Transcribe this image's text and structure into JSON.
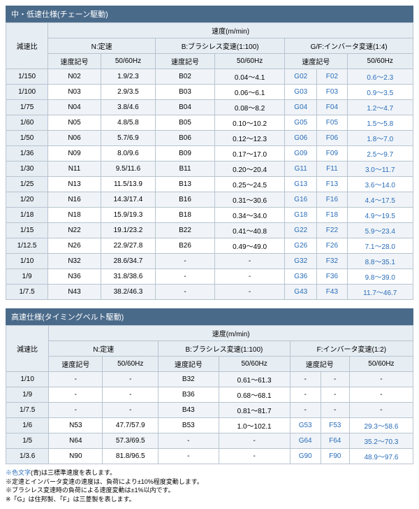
{
  "table1": {
    "title": "中・低速仕様(チェーン駆動)",
    "header_speed": "速度(m/min)",
    "header_ratio": "減速比",
    "header_n": "N:定速",
    "header_b": "B:ブラシレス変速(1:100)",
    "header_gf": "G/F:インバータ変速(1:4)",
    "header_code": "速度記号",
    "header_hz": "50/60Hz",
    "rows": [
      {
        "ratio": "1/150",
        "n_code": "N02",
        "n_hz": "1.9/2.3",
        "b_code": "B02",
        "b_hz": "0.04～4.1",
        "g": "G02",
        "f": "F02",
        "gf_hz": "0.6～2.3"
      },
      {
        "ratio": "1/100",
        "n_code": "N03",
        "n_hz": "2.9/3.5",
        "b_code": "B03",
        "b_hz": "0.06～6.1",
        "g": "G03",
        "f": "F03",
        "gf_hz": "0.9～3.5"
      },
      {
        "ratio": "1/75",
        "n_code": "N04",
        "n_hz": "3.8/4.6",
        "b_code": "B04",
        "b_hz": "0.08～8.2",
        "g": "G04",
        "f": "F04",
        "gf_hz": "1.2～4.7"
      },
      {
        "ratio": "1/60",
        "n_code": "N05",
        "n_hz": "4.8/5.8",
        "b_code": "B05",
        "b_hz": "0.10～10.2",
        "g": "G05",
        "f": "F05",
        "gf_hz": "1.5～5.8"
      },
      {
        "ratio": "1/50",
        "n_code": "N06",
        "n_hz": "5.7/6.9",
        "b_code": "B06",
        "b_hz": "0.12～12.3",
        "g": "G06",
        "f": "F06",
        "gf_hz": "1.8～7.0"
      },
      {
        "ratio": "1/36",
        "n_code": "N09",
        "n_hz": "8.0/9.6",
        "b_code": "B09",
        "b_hz": "0.17～17.0",
        "g": "G09",
        "f": "F09",
        "gf_hz": "2.5～9.7"
      },
      {
        "ratio": "1/30",
        "n_code": "N11",
        "n_hz": "9.5/11.6",
        "b_code": "B11",
        "b_hz": "0.20～20.4",
        "g": "G11",
        "f": "F11",
        "gf_hz": "3.0～11.7"
      },
      {
        "ratio": "1/25",
        "n_code": "N13",
        "n_hz": "11.5/13.9",
        "b_code": "B13",
        "b_hz": "0.25～24.5",
        "g": "G13",
        "f": "F13",
        "gf_hz": "3.6～14.0"
      },
      {
        "ratio": "1/20",
        "n_code": "N16",
        "n_hz": "14.3/17.4",
        "b_code": "B16",
        "b_hz": "0.31～30.6",
        "g": "G16",
        "f": "F16",
        "gf_hz": "4.4～17.5"
      },
      {
        "ratio": "1/18",
        "n_code": "N18",
        "n_hz": "15.9/19.3",
        "b_code": "B18",
        "b_hz": "0.34～34.0",
        "g": "G18",
        "f": "F18",
        "gf_hz": "4.9～19.5"
      },
      {
        "ratio": "1/15",
        "n_code": "N22",
        "n_hz": "19.1/23.2",
        "b_code": "B22",
        "b_hz": "0.41～40.8",
        "g": "G22",
        "f": "F22",
        "gf_hz": "5.9～23.4"
      },
      {
        "ratio": "1/12.5",
        "n_code": "N26",
        "n_hz": "22.9/27.8",
        "b_code": "B26",
        "b_hz": "0.49～49.0",
        "g": "G26",
        "f": "F26",
        "gf_hz": "7.1～28.0"
      },
      {
        "ratio": "1/10",
        "n_code": "N32",
        "n_hz": "28.6/34.7",
        "b_code": "-",
        "b_hz": "-",
        "g": "G32",
        "f": "F32",
        "gf_hz": "8.8～35.1"
      },
      {
        "ratio": "1/9",
        "n_code": "N36",
        "n_hz": "31.8/38.6",
        "b_code": "-",
        "b_hz": "-",
        "g": "G36",
        "f": "F36",
        "gf_hz": "9.8～39.0"
      },
      {
        "ratio": "1/7.5",
        "n_code": "N43",
        "n_hz": "38.2/46.3",
        "b_code": "-",
        "b_hz": "-",
        "g": "G43",
        "f": "F43",
        "gf_hz": "11.7～46.7"
      }
    ]
  },
  "table2": {
    "title": "高速仕様(タイミングベルト駆動)",
    "header_speed": "速度(m/min)",
    "header_ratio": "減速比",
    "header_n": "N:定速",
    "header_b": "B:ブラシレス変速(1:100)",
    "header_f": "F:インバータ変速(1:2)",
    "header_code": "速度記号",
    "header_hz": "50/60Hz",
    "rows": [
      {
        "ratio": "1/10",
        "n_code": "-",
        "n_hz": "-",
        "b_code": "B32",
        "b_hz": "0.61～61.3",
        "g": "-",
        "f": "-",
        "gf_hz": "-"
      },
      {
        "ratio": "1/9",
        "n_code": "-",
        "n_hz": "-",
        "b_code": "B36",
        "b_hz": "0.68～68.1",
        "g": "-",
        "f": "-",
        "gf_hz": "-"
      },
      {
        "ratio": "1/7.5",
        "n_code": "-",
        "n_hz": "-",
        "b_code": "B43",
        "b_hz": "0.81～81.7",
        "g": "-",
        "f": "-",
        "gf_hz": "-"
      },
      {
        "ratio": "1/6",
        "n_code": "N53",
        "n_hz": "47.7/57.9",
        "b_code": "B53",
        "b_hz": "1.0～102.1",
        "g": "G53",
        "f": "F53",
        "gf_hz": "29.3～58.6"
      },
      {
        "ratio": "1/5",
        "n_code": "N64",
        "n_hz": "57.3/69.5",
        "b_code": "-",
        "b_hz": "-",
        "g": "G64",
        "f": "F64",
        "gf_hz": "35.2～70.3"
      },
      {
        "ratio": "1/3.6",
        "n_code": "N90",
        "n_hz": "81.8/96.5",
        "b_code": "-",
        "b_hz": "-",
        "g": "G90",
        "f": "F90",
        "gf_hz": "48.9～97.6"
      }
    ]
  },
  "notes": {
    "l1": "※色文字(青)は三標準速度を表します。",
    "l2": "※定速とインバータ変速の速度は、負荷により±10%程度変動します。",
    "l3": "※ブラシレス変速時の負荷による速度変動は±1%以内です。",
    "l4": "※「G」は住邦製、「F」は三菱製を表します。"
  }
}
